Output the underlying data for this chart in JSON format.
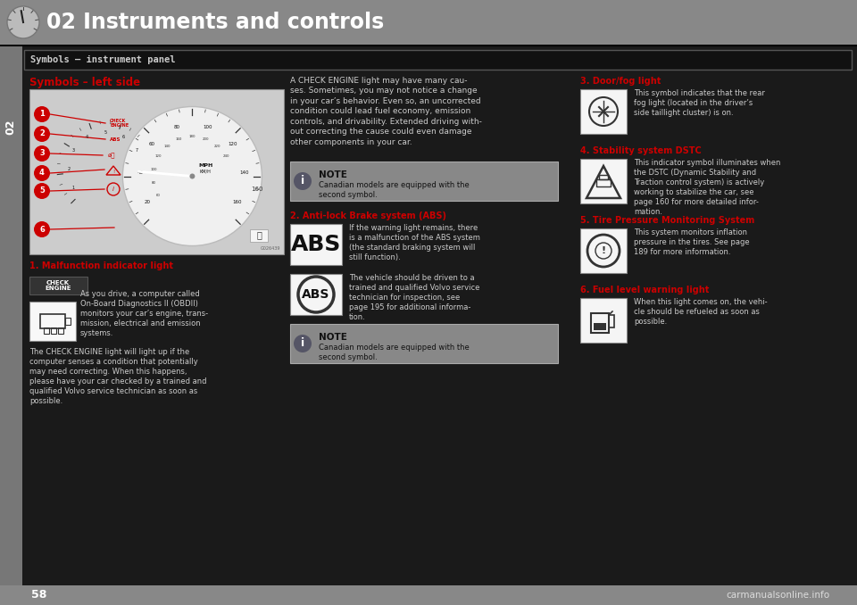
{
  "page_bg": "#1a1a1a",
  "content_bg": "#1a1a1a",
  "header_bg": "#888888",
  "header_text": "02 Instruments and controls",
  "header_text_color": "#ffffff",
  "header_font_size": 17,
  "left_bar_bg": "#555555",
  "left_bar_text": "02",
  "section_box_bg": "#111111",
  "section_box_border": "#555555",
  "section_title": "Symbols – instrument panel",
  "section_title_color": "#cccccc",
  "subsection_title": "Symbols – left side",
  "subsection_title_color": "#cc0000",
  "bottom_bar_bg": "#888888",
  "bottom_page_num": "58",
  "bottom_watermark": "carmanualsonline.info",
  "col1_heading": "1. Malfunction indicator light",
  "col2_heading_para": "A CHECK ENGINE light may have many cau-\nses. Sometimes, you may not notice a change\nin your car’s behavior. Even so, an uncorrected\ncondition could lead fuel economy, emission\ncontrols, and drivability. Extended driving with-\nout correcting the cause could even damage\nother components in your car.",
  "note1_text": "Canadian models are equipped with the\nsecond symbol.",
  "col2_abs_heading": "2. Anti-lock Brake system (ABS)",
  "abs_text1": "If the warning light remains, there\nis a malfunction of the ABS system\n(the standard braking system will\nstill function).",
  "abs_text2": "The vehicle should be driven to a\ntrained and qualified Volvo service\ntechnician for inspection, see\npage 195 for additional informa-\ntion.",
  "note2_text": "Canadian models are equipped with the\nsecond symbol.",
  "col3_heading3": "3. Door/fog light",
  "col3_body3": "This symbol indicates that the rear\nfog light (located in the driver’s\nside taillight cluster) is on.",
  "col3_heading4": "4. Stability system DSTC",
  "col3_body4": "This indicator symbol illuminates when\nthe DSTC (Dynamic Stability and\nTraction control system) is actively\nworking to stabilize the car, see\npage 160 for more detailed infor-\nmation.",
  "col3_heading5": "5. Tire Pressure Monitoring System",
  "col3_body5": "This system monitors inflation\npressure in the tires. See page\n189 for more information.",
  "col3_heading6": "6. Fuel level warning light",
  "col3_body6": "When this light comes on, the vehi-\ncle should be refueled as soon as\npossible.",
  "col1_para": "As you drive, a computer called\nOn-Board Diagnostics II (OBDII)\nmonitors your car’s engine, trans-\nmission, electrical and emission\nsystems.",
  "col1_para2": "The CHECK ENGINE light will light up if the\ncomputer senses a condition that potentially\nmay need correcting. When this happens,\nplease have your car checked by a trained and\nqualified Volvo service technician as soon as\npossible."
}
